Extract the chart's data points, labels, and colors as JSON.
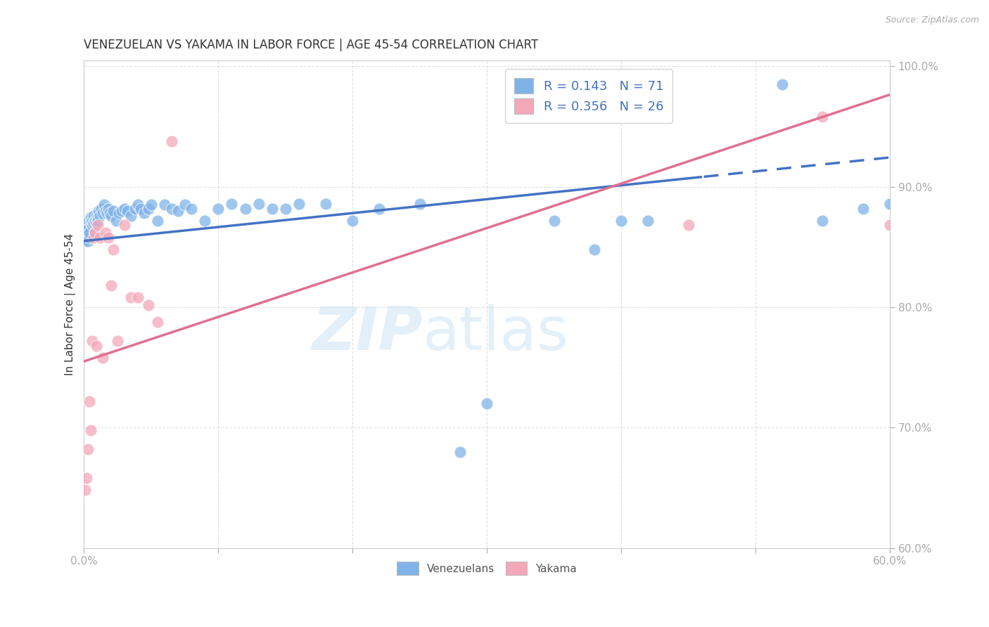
{
  "title": "VENEZUELAN VS YAKAMA IN LABOR FORCE | AGE 45-54 CORRELATION CHART",
  "source": "Source: ZipAtlas.com",
  "ylabel_label": "In Labor Force | Age 45-54",
  "watermark_zip": "ZIP",
  "watermark_atlas": "atlas",
  "xmin": 0.0,
  "xmax": 0.6,
  "ymin": 0.6,
  "ymax": 1.005,
  "xticks": [
    0.0,
    0.1,
    0.2,
    0.3,
    0.4,
    0.5,
    0.6
  ],
  "yticks": [
    0.6,
    0.7,
    0.8,
    0.9,
    1.0
  ],
  "venezuelan_color": "#7fb3e8",
  "yakama_color": "#f4a7b9",
  "venezuelan_line_color": "#4472c4",
  "yakama_line_color": "#e07090",
  "venezuelan_R": 0.143,
  "venezuelan_N": 71,
  "yakama_R": 0.356,
  "yakama_N": 26,
  "venezuelan_x": [
    0.001,
    0.001,
    0.002,
    0.002,
    0.003,
    0.003,
    0.004,
    0.004,
    0.005,
    0.005,
    0.006,
    0.006,
    0.007,
    0.007,
    0.008,
    0.008,
    0.009,
    0.009,
    0.01,
    0.01,
    0.011,
    0.012,
    0.013,
    0.014,
    0.015,
    0.016,
    0.017,
    0.018,
    0.019,
    0.02,
    0.022,
    0.024,
    0.026,
    0.028,
    0.03,
    0.032,
    0.035,
    0.038,
    0.04,
    0.042,
    0.045,
    0.048,
    0.05,
    0.055,
    0.06,
    0.065,
    0.07,
    0.075,
    0.08,
    0.09,
    0.1,
    0.11,
    0.12,
    0.13,
    0.14,
    0.15,
    0.16,
    0.18,
    0.2,
    0.22,
    0.25,
    0.28,
    0.3,
    0.35,
    0.38,
    0.4,
    0.42,
    0.52,
    0.55,
    0.58,
    0.6
  ],
  "venezuelan_y": [
    0.855,
    0.865,
    0.86,
    0.87,
    0.855,
    0.865,
    0.858,
    0.862,
    0.875,
    0.87,
    0.868,
    0.872,
    0.87,
    0.876,
    0.862,
    0.872,
    0.87,
    0.876,
    0.875,
    0.872,
    0.88,
    0.876,
    0.882,
    0.878,
    0.885,
    0.88,
    0.878,
    0.882,
    0.878,
    0.876,
    0.88,
    0.872,
    0.878,
    0.88,
    0.882,
    0.88,
    0.876,
    0.882,
    0.885,
    0.882,
    0.878,
    0.882,
    0.885,
    0.872,
    0.885,
    0.882,
    0.88,
    0.885,
    0.882,
    0.872,
    0.882,
    0.886,
    0.882,
    0.886,
    0.882,
    0.882,
    0.886,
    0.886,
    0.872,
    0.882,
    0.886,
    0.68,
    0.72,
    0.872,
    0.848,
    0.872,
    0.872,
    0.985,
    0.872,
    0.882,
    0.886
  ],
  "yakama_x": [
    0.001,
    0.002,
    0.003,
    0.004,
    0.005,
    0.006,
    0.007,
    0.008,
    0.009,
    0.01,
    0.012,
    0.014,
    0.016,
    0.018,
    0.02,
    0.022,
    0.025,
    0.03,
    0.035,
    0.04,
    0.048,
    0.055,
    0.065,
    0.45,
    0.55,
    0.6
  ],
  "yakama_y": [
    0.648,
    0.658,
    0.682,
    0.722,
    0.698,
    0.772,
    0.858,
    0.862,
    0.768,
    0.868,
    0.858,
    0.758,
    0.862,
    0.858,
    0.818,
    0.848,
    0.772,
    0.868,
    0.808,
    0.808,
    0.802,
    0.788,
    0.938,
    0.868,
    0.958,
    0.868
  ],
  "grid_color": "#dddddd",
  "background_color": "#ffffff",
  "title_color": "#333333",
  "tick_color": "#4472c4",
  "legend_text_color": "#4472c4",
  "bottom_legend_text_color": "#555555"
}
